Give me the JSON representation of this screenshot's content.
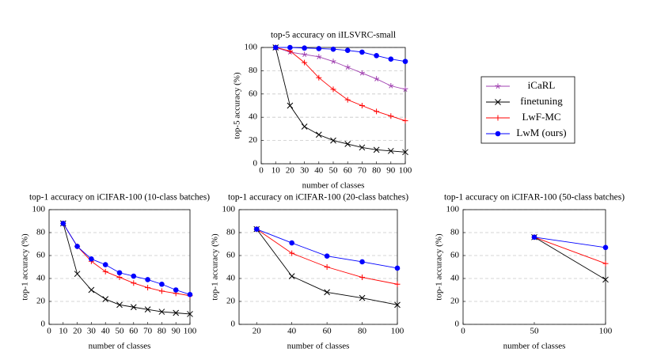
{
  "chart_data": [
    {
      "type": "line",
      "title": "top-5 accuracy on iILSVRC-small",
      "xlabel": "number of classes",
      "ylabel": "top-5 accuracy (%)",
      "x": [
        10,
        20,
        30,
        40,
        50,
        60,
        70,
        80,
        90,
        100
      ],
      "xlim": [
        0,
        100
      ],
      "ylim": [
        0,
        100
      ],
      "xticks": [
        0,
        10,
        20,
        30,
        40,
        50,
        60,
        70,
        80,
        90,
        100
      ],
      "yticks": [
        0,
        20,
        40,
        60,
        80,
        100
      ],
      "grid": true,
      "series": [
        {
          "name": "iCaRL",
          "color": "#a040b0",
          "marker": "star",
          "values": [
            100,
            96,
            94,
            92,
            88,
            83,
            78,
            73,
            67,
            64
          ]
        },
        {
          "name": "finetuning",
          "color": "#000000",
          "marker": "x",
          "values": [
            100,
            50,
            32,
            25,
            20,
            17,
            14,
            12,
            11,
            10
          ]
        },
        {
          "name": "LwF-MC",
          "color": "#ff0000",
          "marker": "plus",
          "values": [
            100,
            97,
            87,
            74,
            64,
            55,
            50,
            45,
            41,
            37
          ]
        },
        {
          "name": "LwM (ours)",
          "color": "#0000ff",
          "marker": "dot",
          "values": [
            100,
            100,
            99.5,
            99,
            98.5,
            97.5,
            96,
            93,
            90,
            88
          ]
        }
      ]
    },
    {
      "type": "line",
      "title": "top-1 accuracy on iCIFAR-100 (10-class batches)",
      "xlabel": "number of classes",
      "ylabel": "top-1 accuracy (%)",
      "x": [
        10,
        20,
        30,
        40,
        50,
        60,
        70,
        80,
        90,
        100
      ],
      "xlim": [
        0,
        100
      ],
      "ylim": [
        0,
        100
      ],
      "xticks": [
        0,
        10,
        20,
        30,
        40,
        50,
        60,
        70,
        80,
        90,
        100
      ],
      "yticks": [
        0,
        20,
        40,
        60,
        80,
        100
      ],
      "grid": true,
      "series": [
        {
          "color": "#000000",
          "marker": "x",
          "values": [
            88,
            44,
            30,
            22,
            17,
            15,
            13,
            11,
            10,
            9
          ]
        },
        {
          "color": "#ff0000",
          "marker": "plus",
          "values": [
            88,
            68,
            55,
            46,
            41,
            36,
            32,
            29,
            27,
            25
          ]
        },
        {
          "color": "#0000ff",
          "marker": "dot",
          "values": [
            88,
            68,
            57,
            52,
            45,
            42,
            39,
            35,
            30,
            26
          ]
        }
      ]
    },
    {
      "type": "line",
      "title": "top-1 accuracy on iCIFAR-100 (20-class batches)",
      "xlabel": "number of classes",
      "ylabel": "top-1 accuracy (%)",
      "x": [
        20,
        40,
        60,
        80,
        100
      ],
      "xlim": [
        10,
        100
      ],
      "ylim": [
        0,
        100
      ],
      "xticks": [
        20,
        40,
        60,
        80,
        100
      ],
      "yticks": [
        0,
        20,
        40,
        60,
        80,
        100
      ],
      "grid": true,
      "series": [
        {
          "color": "#000000",
          "marker": "x",
          "values": [
            83,
            42,
            28,
            23,
            17
          ]
        },
        {
          "color": "#ff0000",
          "marker": "plus",
          "values": [
            83,
            62,
            50,
            41,
            35
          ]
        },
        {
          "color": "#0000ff",
          "marker": "dot",
          "values": [
            83,
            71,
            59.5,
            54.5,
            49
          ]
        }
      ]
    },
    {
      "type": "line",
      "title": "top-1 accuracy on iCIFAR-100 (50-class batches)",
      "xlabel": "number of classes",
      "ylabel": "top-1 accuracy (%)",
      "x": [
        50,
        100
      ],
      "xlim": [
        0,
        100
      ],
      "ylim": [
        0,
        100
      ],
      "xticks": [
        0,
        50,
        100
      ],
      "yticks": [
        0,
        20,
        40,
        60,
        80,
        100
      ],
      "grid": true,
      "series": [
        {
          "color": "#000000",
          "marker": "x",
          "values": [
            76,
            39
          ]
        },
        {
          "color": "#ff0000",
          "marker": "plus",
          "values": [
            76,
            53
          ]
        },
        {
          "color": "#0000ff",
          "marker": "dot",
          "values": [
            76,
            67
          ]
        }
      ]
    }
  ]
}
